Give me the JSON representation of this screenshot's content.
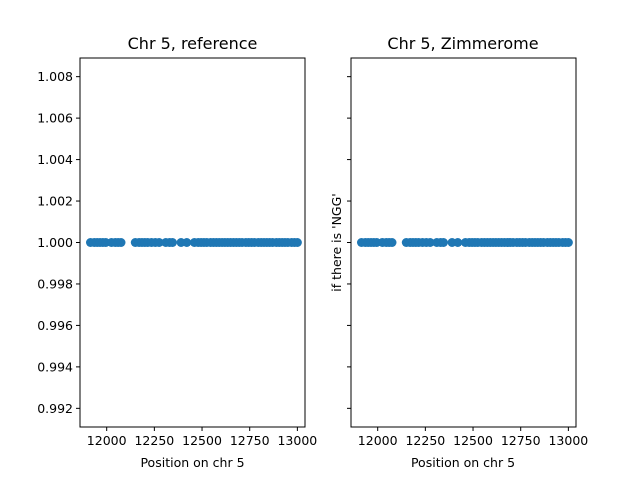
{
  "chart_data": [
    {
      "type": "scatter",
      "title": "Chr 5, reference",
      "xlabel": "Position on chr 5",
      "ylabel": "",
      "xlim": [
        11860,
        13040
      ],
      "ylim": [
        0.9911,
        1.0089
      ],
      "xticks": [
        12000,
        12250,
        12500,
        12750,
        13000
      ],
      "yticks": [
        0.992,
        0.994,
        0.996,
        0.998,
        1.0,
        1.002,
        1.004,
        1.006,
        1.008
      ],
      "ytick_labels": [
        "0.992",
        "0.994",
        "0.996",
        "0.998",
        "1.000",
        "1.002",
        "1.004",
        "1.006",
        "1.008"
      ],
      "color": "#1f77b4",
      "x": [
        11915,
        11935,
        11950,
        11965,
        11980,
        11995,
        12025,
        12045,
        12060,
        12075,
        12150,
        12170,
        12185,
        12200,
        12215,
        12235,
        12255,
        12275,
        12310,
        12330,
        12345,
        12390,
        12420,
        12460,
        12480,
        12495,
        12510,
        12525,
        12545,
        12560,
        12575,
        12590,
        12605,
        12620,
        12635,
        12650,
        12665,
        12680,
        12695,
        12710,
        12730,
        12745,
        12760,
        12775,
        12795,
        12810,
        12825,
        12840,
        12855,
        12870,
        12890,
        12905,
        12920,
        12935,
        12950,
        12970,
        12985,
        13000
      ],
      "y": [
        1.0,
        1.0,
        1.0,
        1.0,
        1.0,
        1.0,
        1.0,
        1.0,
        1.0,
        1.0,
        1.0,
        1.0,
        1.0,
        1.0,
        1.0,
        1.0,
        1.0,
        1.0,
        1.0,
        1.0,
        1.0,
        1.0,
        1.0,
        1.0,
        1.0,
        1.0,
        1.0,
        1.0,
        1.0,
        1.0,
        1.0,
        1.0,
        1.0,
        1.0,
        1.0,
        1.0,
        1.0,
        1.0,
        1.0,
        1.0,
        1.0,
        1.0,
        1.0,
        1.0,
        1.0,
        1.0,
        1.0,
        1.0,
        1.0,
        1.0,
        1.0,
        1.0,
        1.0,
        1.0,
        1.0,
        1.0,
        1.0,
        1.0
      ]
    },
    {
      "type": "scatter",
      "title": "Chr 5, Zimmerome",
      "xlabel": "Position on chr 5",
      "ylabel": "if there is 'NGG'",
      "xlim": [
        11860,
        13040
      ],
      "ylim": [
        0.9911,
        1.0089
      ],
      "xticks": [
        12000,
        12250,
        12500,
        12750,
        13000
      ],
      "yticks": [
        0.992,
        0.994,
        0.996,
        0.998,
        1.0,
        1.002,
        1.004,
        1.006,
        1.008
      ],
      "ytick_labels": [],
      "color": "#1f77b4",
      "x": [
        11915,
        11935,
        11950,
        11965,
        11980,
        11995,
        12025,
        12045,
        12060,
        12075,
        12150,
        12170,
        12185,
        12200,
        12215,
        12235,
        12255,
        12275,
        12310,
        12330,
        12345,
        12390,
        12420,
        12460,
        12480,
        12495,
        12510,
        12525,
        12545,
        12560,
        12575,
        12590,
        12605,
        12620,
        12635,
        12650,
        12665,
        12680,
        12695,
        12710,
        12730,
        12745,
        12760,
        12775,
        12795,
        12810,
        12825,
        12840,
        12855,
        12870,
        12890,
        12905,
        12920,
        12935,
        12950,
        12970,
        12985,
        13000
      ],
      "y": [
        1.0,
        1.0,
        1.0,
        1.0,
        1.0,
        1.0,
        1.0,
        1.0,
        1.0,
        1.0,
        1.0,
        1.0,
        1.0,
        1.0,
        1.0,
        1.0,
        1.0,
        1.0,
        1.0,
        1.0,
        1.0,
        1.0,
        1.0,
        1.0,
        1.0,
        1.0,
        1.0,
        1.0,
        1.0,
        1.0,
        1.0,
        1.0,
        1.0,
        1.0,
        1.0,
        1.0,
        1.0,
        1.0,
        1.0,
        1.0,
        1.0,
        1.0,
        1.0,
        1.0,
        1.0,
        1.0,
        1.0,
        1.0,
        1.0,
        1.0,
        1.0,
        1.0,
        1.0,
        1.0,
        1.0,
        1.0,
        1.0,
        1.0
      ]
    }
  ]
}
